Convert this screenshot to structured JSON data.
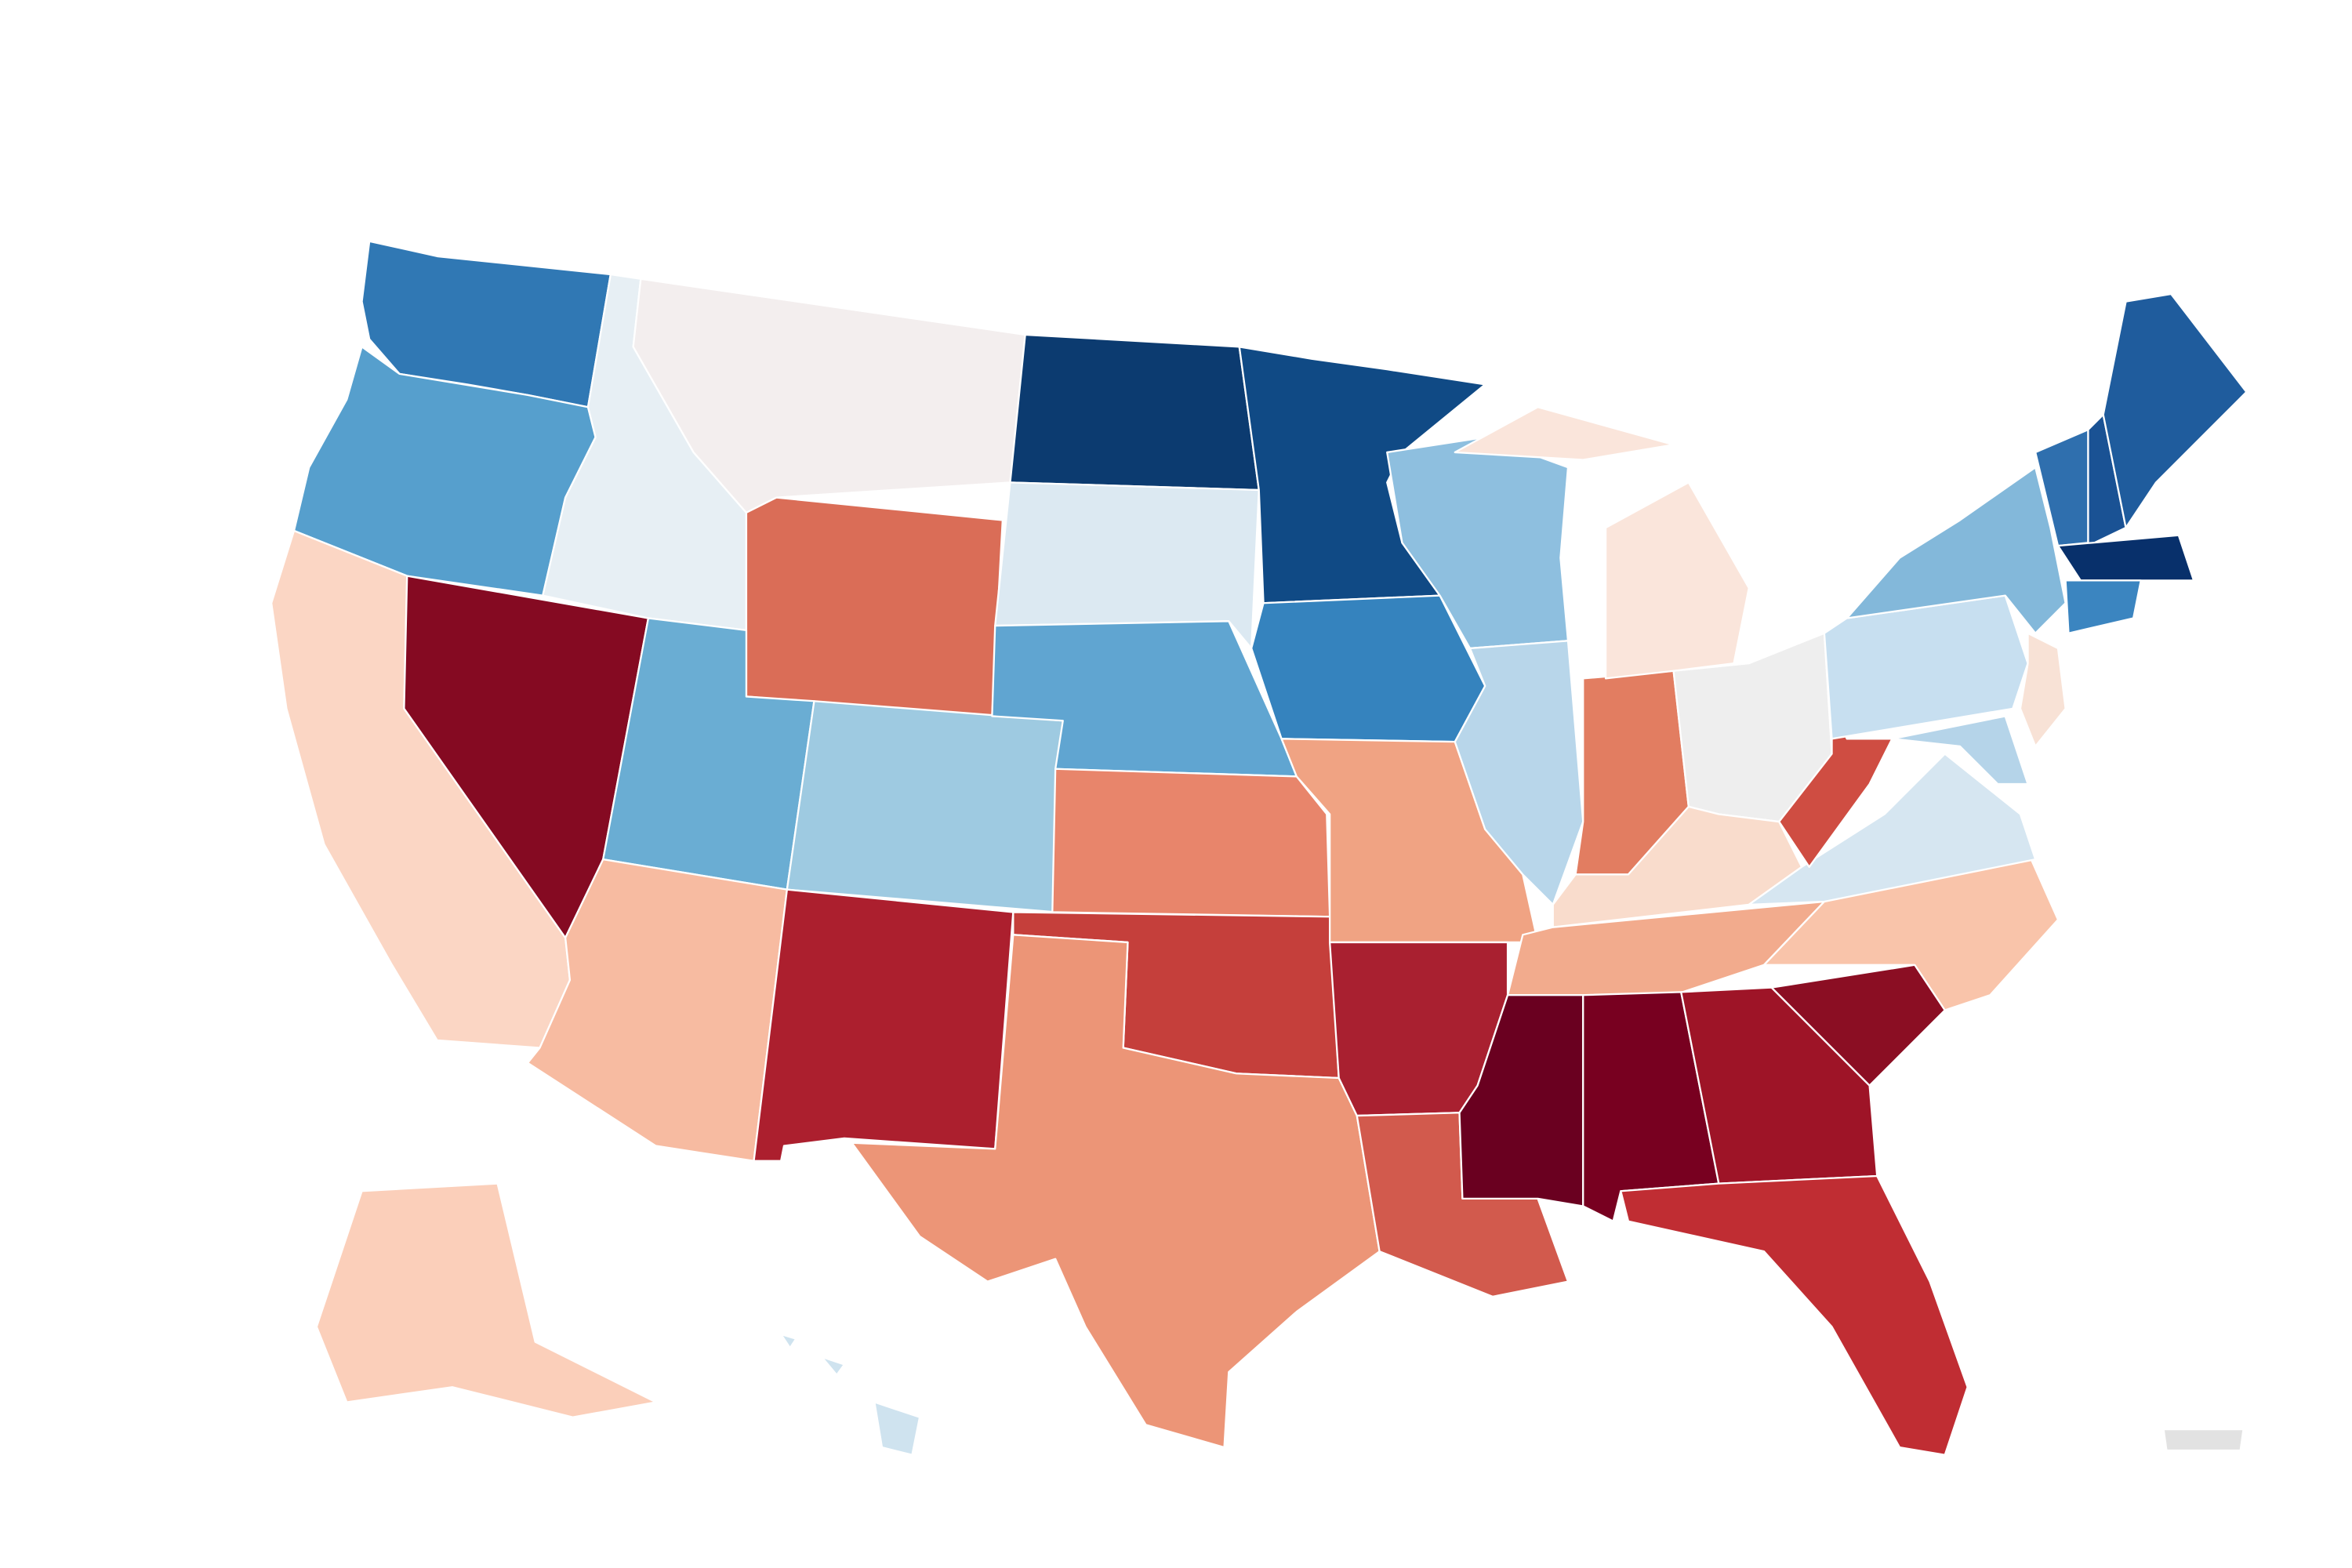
{
  "map": {
    "regions": [
      {
        "color": "#3078b4"
      },
      {
        "color": "#569fcd"
      },
      {
        "color": "#fbd6c4"
      },
      {
        "color": "#850a22"
      },
      {
        "color": "#e7eff4"
      },
      {
        "color": "#f3eeee"
      },
      {
        "color": "#da6d57"
      },
      {
        "color": "#6aadd3"
      },
      {
        "color": "#9ecae1"
      },
      {
        "color": "#f7bba1"
      },
      {
        "color": "#ac1f2e"
      },
      {
        "color": "#0c3b70"
      },
      {
        "color": "#dce9f2"
      },
      {
        "color": "#60a5d1"
      },
      {
        "color": "#e8856b"
      },
      {
        "color": "#c53f3b"
      },
      {
        "color": "#ec9577"
      },
      {
        "color": "#104a85"
      },
      {
        "color": "#3583be"
      },
      {
        "color": "#f0a383"
      },
      {
        "color": "#a92030"
      },
      {
        "color": "#d25a4d"
      },
      {
        "color": "#8ebfdf"
      },
      {
        "color": "#b8d6ea"
      },
      {
        "color": "#e27d61"
      },
      {
        "color": "#fae5db"
      },
      {
        "color": "#eeeeee"
      },
      {
        "color": "#f9dccc"
      },
      {
        "color": "#f2ab8d"
      },
      {
        "color": "#6a0020"
      },
      {
        "color": "#780020"
      },
      {
        "color": "#9e1427"
      },
      {
        "color": "#8b0e23"
      },
      {
        "color": "#f9c4aa"
      },
      {
        "color": "#c02d33"
      },
      {
        "color": "#d6e6f1"
      },
      {
        "color": "#cf4d42"
      },
      {
        "color": "#c7dff0"
      },
      {
        "color": "#83b8da"
      },
      {
        "color": "#f8e2d6"
      },
      {
        "color": "#b5d4e9"
      },
      {
        "color": "#2f6fae"
      },
      {
        "color": "#1a5294"
      },
      {
        "color": "#1f5c9d"
      },
      {
        "color": "#08306b"
      },
      {
        "color": "#3b85c0"
      },
      {
        "color": "#fbcfba"
      },
      {
        "color": "#cfe3ef"
      },
      {
        "color": "#e2e2e2"
      }
    ]
  }
}
